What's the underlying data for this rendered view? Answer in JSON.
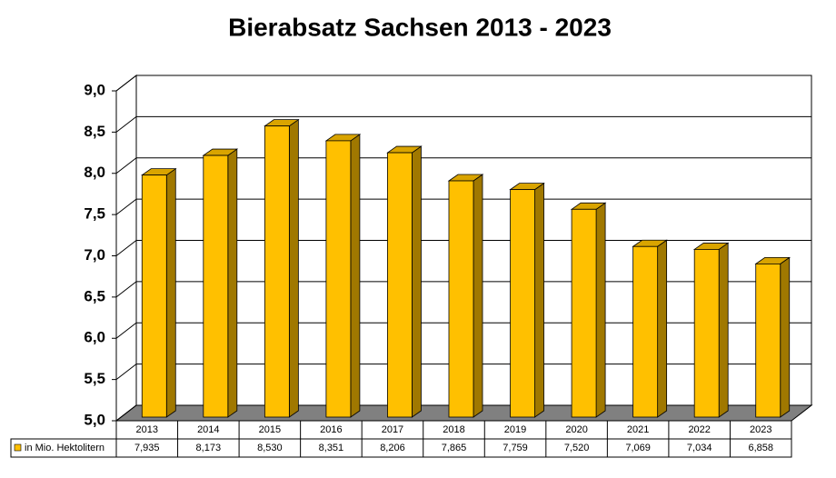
{
  "chart_data": {
    "type": "bar3d",
    "title": "Bierabsatz Sachsen 2013 - 2023",
    "categories": [
      "2013",
      "2014",
      "2015",
      "2016",
      "2017",
      "2018",
      "2019",
      "2020",
      "2021",
      "2022",
      "2023"
    ],
    "series": [
      {
        "name": "in Mio. Hektolitern",
        "color": "#ffc000",
        "values": [
          7.935,
          8.173,
          8.53,
          8.351,
          8.206,
          7.865,
          7.759,
          7.52,
          7.069,
          7.034,
          6.858
        ],
        "value_labels": [
          "7,935",
          "8,173",
          "8,530",
          "8,351",
          "8,206",
          "7,865",
          "7,759",
          "7,520",
          "7,069",
          "7,034",
          "6,858"
        ]
      }
    ],
    "ylim": [
      5,
      9
    ],
    "yticks": [
      {
        "value": 5,
        "label": "5,0"
      },
      {
        "value": 5.5,
        "label": "5,5"
      },
      {
        "value": 6,
        "label": "6,0"
      },
      {
        "value": 6.5,
        "label": "6,5"
      },
      {
        "value": 7,
        "label": "7,0"
      },
      {
        "value": 7.5,
        "label": "7,5"
      },
      {
        "value": 8,
        "label": "8,0"
      },
      {
        "value": 8.5,
        "label": "8,5"
      },
      {
        "value": 9,
        "label": "9,0"
      }
    ],
    "grid": true
  }
}
